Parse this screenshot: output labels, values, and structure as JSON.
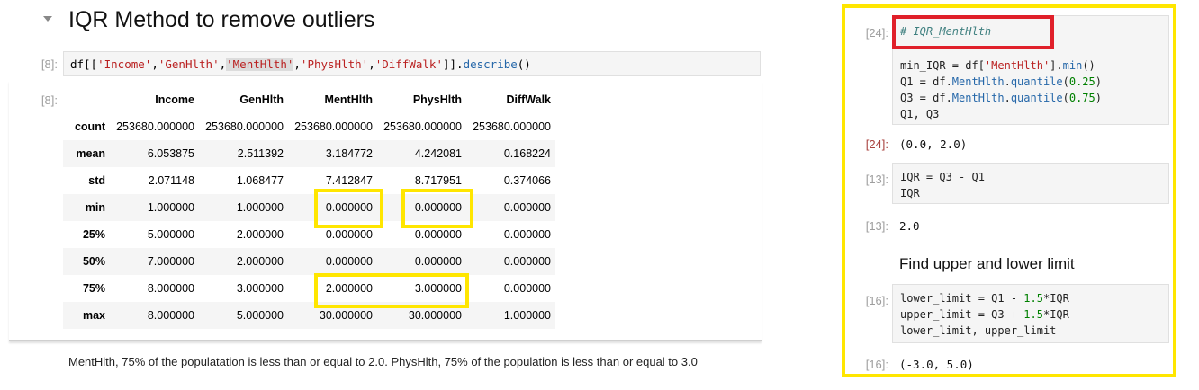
{
  "left": {
    "heading": "IQR Method to remove outliers",
    "input_prompt": "[8]:",
    "code": {
      "prefix": "df[[",
      "strings": [
        "'Income'",
        "'GenHlth'",
        "'MentHlth'",
        "'PhysHlth'",
        "'DiffWalk'"
      ],
      "sep": ",",
      "suffix_bracket": "]].",
      "method": "describe",
      "call": "()"
    },
    "output_prompt": "[8]:",
    "table": {
      "columns": [
        "Income",
        "GenHlth",
        "MentHlth",
        "PhysHlth",
        "DiffWalk"
      ],
      "rows": [
        {
          "label": "count",
          "values": [
            "253680.000000",
            "253680.000000",
            "253680.000000",
            "253680.000000",
            "253680.000000"
          ]
        },
        {
          "label": "mean",
          "values": [
            "6.053875",
            "2.511392",
            "3.184772",
            "4.242081",
            "0.168224"
          ]
        },
        {
          "label": "std",
          "values": [
            "2.071148",
            "1.068477",
            "7.412847",
            "8.717951",
            "0.374066"
          ]
        },
        {
          "label": "min",
          "values": [
            "1.000000",
            "1.000000",
            "0.000000",
            "0.000000",
            "0.000000"
          ]
        },
        {
          "label": "25%",
          "values": [
            "5.000000",
            "2.000000",
            "0.000000",
            "0.000000",
            "0.000000"
          ]
        },
        {
          "label": "50%",
          "values": [
            "7.000000",
            "2.000000",
            "0.000000",
            "0.000000",
            "0.000000"
          ]
        },
        {
          "label": "75%",
          "values": [
            "8.000000",
            "3.000000",
            "2.000000",
            "3.000000",
            "0.000000"
          ]
        },
        {
          "label": "max",
          "values": [
            "8.000000",
            "5.000000",
            "30.000000",
            "30.000000",
            "1.000000"
          ]
        }
      ]
    },
    "note": "MentHlth, 75% of the populatation is less than or equal to 2.0. PhysHlth, 75% of the population is less than or equal to 3.0"
  },
  "right": {
    "cell24": {
      "prompt_in": "[24]:",
      "comment": "# IQR_MentHlth",
      "line1": {
        "a": "min_IQR = df[",
        "s": "'MentHlth'",
        "b": "].",
        "m": "min",
        "c": "()"
      },
      "line2": {
        "a": "Q1 = df.",
        "attr": "MentHlth",
        "dot": ".",
        "m": "quantile",
        "o": "(",
        "n": "0.25",
        "c": ")"
      },
      "line3": {
        "a": "Q3 = df.",
        "attr": "MentHlth",
        "dot": ".",
        "m": "quantile",
        "o": "(",
        "n": "0.75",
        "c": ")"
      },
      "line4": "Q1, Q3",
      "prompt_out": "[24]:",
      "output": "(0.0, 2.0)"
    },
    "cell13": {
      "prompt_in": "[13]:",
      "line1": "IQR = Q3 - Q1",
      "line2": "IQR",
      "prompt_out": "[13]:",
      "output": "2.0"
    },
    "md_heading": "Find upper and lower limit",
    "cell16": {
      "prompt_in": "[16]:",
      "line1": {
        "a": "lower_limit = Q1 - ",
        "n": "1.5",
        "b": "*IQR"
      },
      "line2": {
        "a": "upper_limit = Q3 + ",
        "n": "1.5",
        "b": "*IQR"
      },
      "line3": "lower_limit, upper_limit",
      "prompt_out": "[16]:",
      "output": "(-3.0, 5.0)"
    }
  },
  "colors": {
    "highlight_yellow": "#ffe600",
    "highlight_red": "#e0202a",
    "string_red": "#ba2121",
    "method_blue": "#2567a9",
    "number_green": "#008000",
    "comment_teal": "#408080",
    "prompt_out_red": "#a8413d"
  }
}
